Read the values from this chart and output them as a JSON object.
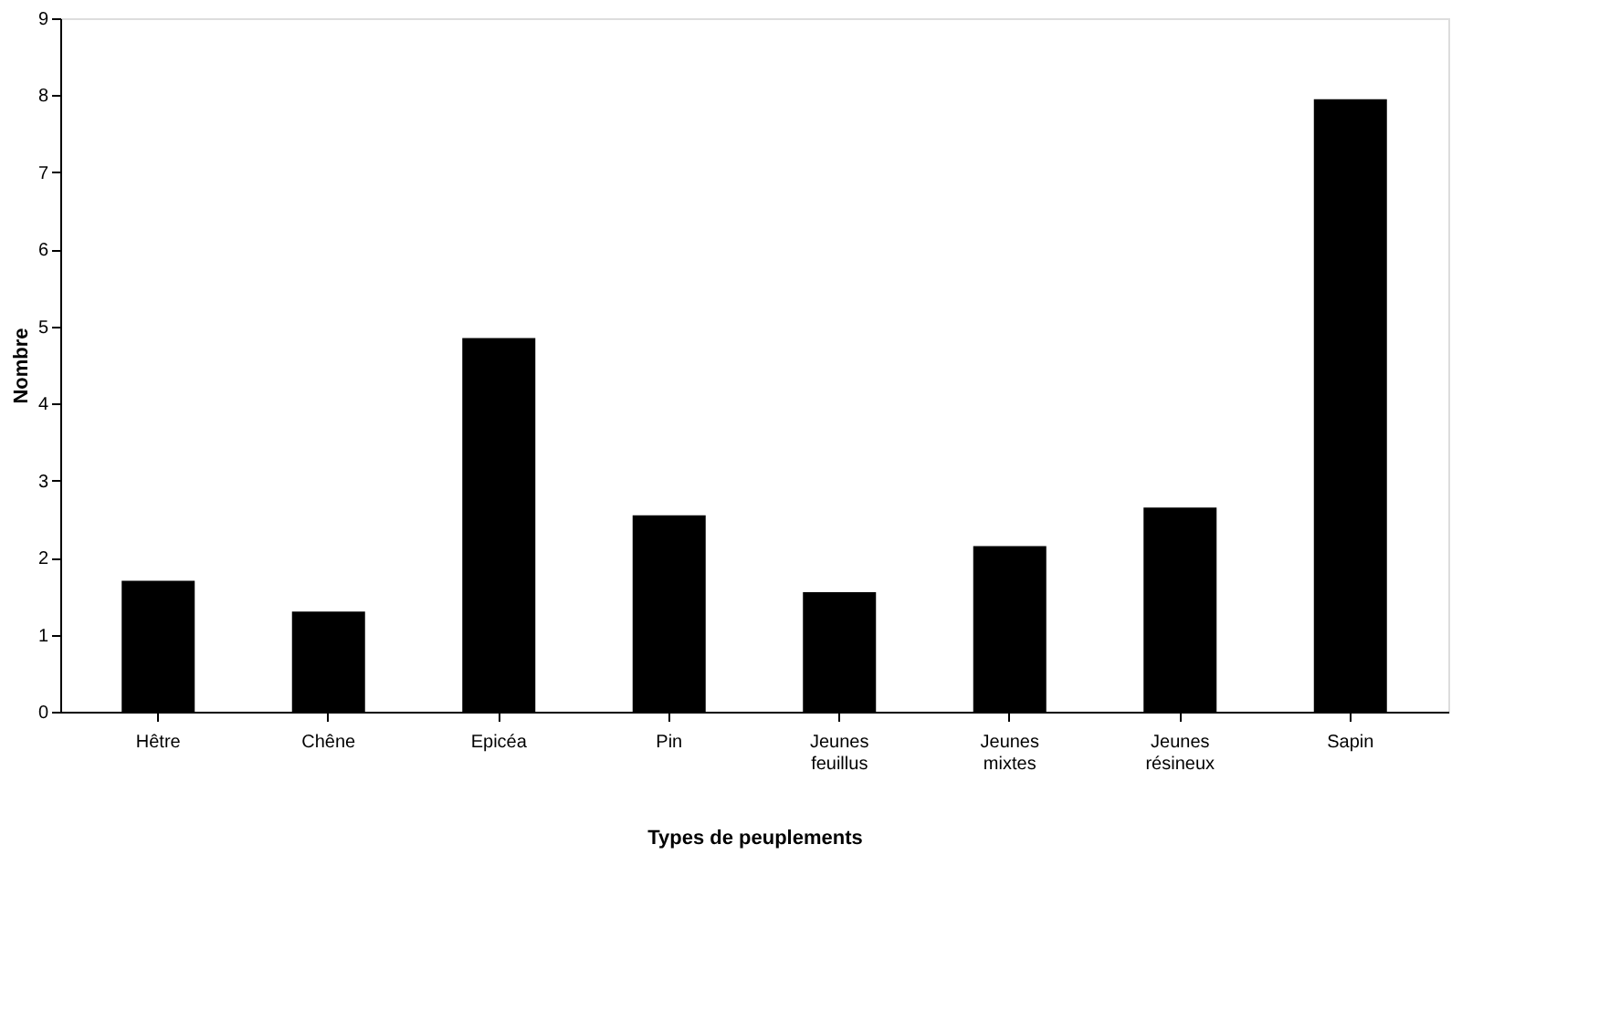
{
  "chart_data": {
    "type": "bar",
    "categories": [
      "Hêtre",
      "Chêne",
      "Epicéa",
      "Pin",
      "Jeunes feuillus",
      "Jeunes mixtes",
      "Jeunes résineux",
      "Sapin"
    ],
    "values": [
      1.7,
      1.3,
      4.85,
      2.55,
      1.55,
      2.15,
      2.65,
      7.95
    ],
    "color": "#000000",
    "xlabel": "Types de peuplements",
    "ylabel": "Nombre",
    "ylim": [
      0,
      9
    ],
    "yticks": [
      0,
      1,
      2,
      3,
      4,
      5,
      6,
      7,
      8,
      9
    ],
    "grid": false
  }
}
